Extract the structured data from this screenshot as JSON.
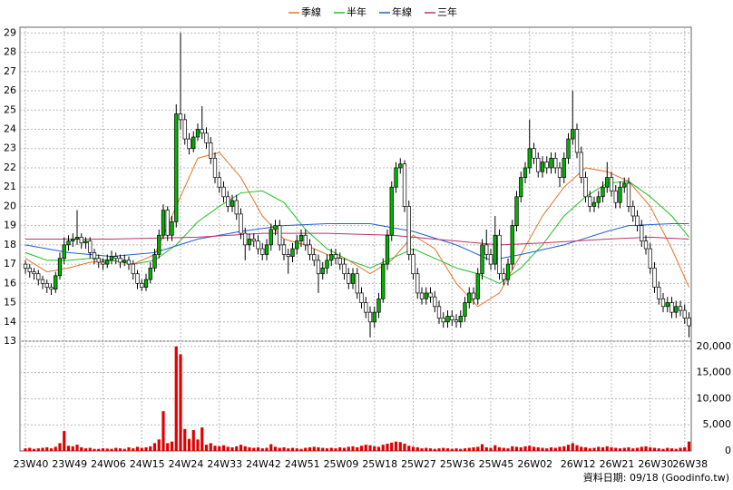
{
  "chart_data": {
    "type": "candlestick",
    "legend": [
      {
        "name": "季線",
        "color": "#e8742a"
      },
      {
        "name": "半年",
        "color": "#22c022"
      },
      {
        "name": "年線",
        "color": "#2060d0"
      },
      {
        "name": "三年",
        "color": "#c0306a"
      }
    ],
    "up_color": "#00b400",
    "down_color": "#ffffff",
    "volume_color": "#e00000",
    "ylim": [
      13,
      29.3
    ],
    "yticks": [
      13,
      14,
      15,
      16,
      17,
      18,
      19,
      20,
      21,
      22,
      23,
      24,
      25,
      26,
      27,
      28,
      29
    ],
    "y2lim": [
      0,
      21000
    ],
    "y2ticks": [
      0,
      {
        "value": 5000,
        "label": "5,000"
      },
      {
        "value": 10000,
        "label": "10,000"
      },
      {
        "value": 15000,
        "label": "15,000"
      },
      {
        "value": 20000,
        "label": "20,000"
      }
    ],
    "xlim": [
      0,
      154
    ],
    "xticks": [
      {
        "value": 0,
        "label": "23W40"
      },
      {
        "value": 9,
        "label": "23W49"
      },
      {
        "value": 18,
        "label": "24W06"
      },
      {
        "value": 27,
        "label": "24W15"
      },
      {
        "value": 36,
        "label": "24W24"
      },
      {
        "value": 45,
        "label": "24W33"
      },
      {
        "value": 54,
        "label": "24W42"
      },
      {
        "value": 63,
        "label": "24W51"
      },
      {
        "value": 72,
        "label": "25W09"
      },
      {
        "value": 81,
        "label": "25W18"
      },
      {
        "value": 90,
        "label": "25W27"
      },
      {
        "value": 99,
        "label": "25W36"
      },
      {
        "value": 108,
        "label": "25W45"
      },
      {
        "value": 117,
        "label": "26W02"
      },
      {
        "value": 127,
        "label": "26W12"
      },
      {
        "value": 136,
        "label": "26W21"
      },
      {
        "value": 145,
        "label": "26W30"
      },
      {
        "value": 153,
        "label": "26W38"
      }
    ],
    "grid": true,
    "footer": "資料日期: 09/18 (Goodinfo.tw)",
    "ohlc": [
      [
        17.0,
        17.2,
        16.5,
        16.8
      ],
      [
        16.8,
        17.0,
        16.3,
        16.6
      ],
      [
        16.6,
        16.8,
        16.2,
        16.5
      ],
      [
        16.5,
        16.7,
        15.9,
        16.2
      ],
      [
        16.2,
        16.4,
        15.7,
        16.0
      ],
      [
        16.0,
        16.2,
        15.5,
        15.8
      ],
      [
        15.8,
        16.0,
        15.4,
        15.7
      ],
      [
        15.7,
        16.6,
        15.5,
        16.4
      ],
      [
        16.4,
        17.6,
        16.2,
        17.3
      ],
      [
        17.3,
        18.4,
        17.0,
        18.0
      ],
      [
        18.0,
        18.5,
        17.7,
        18.2
      ],
      [
        18.2,
        18.6,
        17.9,
        18.3
      ],
      [
        18.3,
        19.8,
        18.0,
        18.4
      ],
      [
        18.4,
        18.6,
        17.8,
        18.1
      ],
      [
        18.1,
        18.4,
        17.8,
        18.2
      ],
      [
        18.2,
        18.4,
        17.3,
        17.6
      ],
      [
        17.6,
        17.8,
        17.0,
        17.3
      ],
      [
        17.3,
        17.5,
        16.8,
        17.1
      ],
      [
        17.1,
        17.3,
        16.7,
        17.0
      ],
      [
        17.0,
        17.5,
        16.8,
        17.2
      ],
      [
        17.2,
        17.7,
        17.0,
        17.4
      ],
      [
        17.4,
        17.6,
        17.0,
        17.3
      ],
      [
        17.3,
        17.5,
        16.8,
        17.1
      ],
      [
        17.1,
        17.5,
        16.9,
        17.2
      ],
      [
        17.2,
        17.4,
        16.7,
        17.0
      ],
      [
        17.0,
        17.2,
        16.2,
        16.5
      ],
      [
        16.5,
        16.7,
        15.7,
        16.0
      ],
      [
        16.0,
        16.2,
        15.6,
        15.8
      ],
      [
        15.8,
        16.5,
        15.6,
        16.2
      ],
      [
        16.2,
        17.1,
        16.0,
        16.8
      ],
      [
        16.8,
        17.8,
        16.6,
        17.5
      ],
      [
        17.5,
        18.8,
        17.3,
        18.5
      ],
      [
        18.5,
        20.1,
        18.3,
        19.8
      ],
      [
        19.8,
        20.0,
        18.2,
        18.5
      ],
      [
        18.5,
        19.5,
        18.2,
        19.2
      ],
      [
        19.2,
        25.3,
        18.9,
        24.8
      ],
      [
        24.8,
        29.0,
        24.0,
        24.5
      ],
      [
        24.5,
        24.8,
        23.2,
        23.5
      ],
      [
        23.5,
        23.8,
        22.7,
        23.0
      ],
      [
        23.0,
        23.9,
        22.8,
        23.6
      ],
      [
        23.6,
        24.3,
        23.4,
        24.0
      ],
      [
        24.0,
        25.2,
        23.5,
        23.8
      ],
      [
        23.8,
        24.1,
        23.0,
        23.3
      ],
      [
        23.3,
        23.6,
        22.2,
        22.5
      ],
      [
        22.5,
        22.8,
        21.2,
        21.5
      ],
      [
        21.5,
        21.8,
        20.7,
        21.0
      ],
      [
        21.0,
        21.3,
        20.2,
        20.5
      ],
      [
        20.5,
        20.8,
        19.7,
        20.0
      ],
      [
        20.0,
        20.6,
        19.7,
        20.3
      ],
      [
        20.3,
        20.6,
        19.3,
        19.6
      ],
      [
        19.6,
        19.9,
        18.3,
        18.6
      ],
      [
        18.6,
        18.9,
        17.2,
        18.0
      ],
      [
        18.0,
        18.6,
        17.7,
        18.3
      ],
      [
        18.3,
        18.6,
        17.9,
        18.2
      ],
      [
        18.2,
        18.5,
        17.5,
        17.8
      ],
      [
        17.8,
        18.1,
        17.2,
        17.5
      ],
      [
        17.5,
        18.3,
        17.2,
        18.0
      ],
      [
        18.0,
        19.1,
        17.7,
        18.8
      ],
      [
        18.8,
        19.3,
        18.5,
        19.0
      ],
      [
        19.0,
        19.3,
        17.7,
        18.0
      ],
      [
        18.0,
        18.3,
        17.2,
        17.5
      ],
      [
        17.5,
        17.8,
        16.5,
        17.4
      ],
      [
        17.4,
        18.1,
        17.1,
        17.8
      ],
      [
        17.8,
        18.5,
        17.5,
        18.2
      ],
      [
        18.2,
        18.8,
        17.9,
        18.5
      ],
      [
        18.5,
        18.8,
        17.7,
        18.0
      ],
      [
        18.0,
        18.3,
        17.2,
        17.5
      ],
      [
        17.5,
        17.8,
        16.9,
        17.2
      ],
      [
        17.2,
        17.5,
        15.5,
        16.5
      ],
      [
        16.5,
        17.1,
        16.2,
        16.8
      ],
      [
        16.8,
        17.5,
        16.5,
        17.2
      ],
      [
        17.2,
        17.8,
        16.9,
        17.5
      ],
      [
        17.5,
        17.8,
        17.0,
        17.3
      ],
      [
        17.3,
        17.6,
        16.7,
        17.0
      ],
      [
        17.0,
        17.3,
        16.2,
        16.5
      ],
      [
        16.5,
        16.8,
        15.7,
        16.0
      ],
      [
        16.0,
        16.8,
        15.7,
        16.5
      ],
      [
        16.5,
        16.8,
        15.2,
        15.5
      ],
      [
        15.5,
        15.8,
        14.7,
        15.0
      ],
      [
        15.0,
        15.3,
        14.2,
        14.5
      ],
      [
        14.5,
        14.8,
        13.2,
        14.0
      ],
      [
        14.0,
        14.8,
        13.7,
        14.5
      ],
      [
        14.5,
        15.5,
        14.2,
        15.2
      ],
      [
        15.2,
        17.3,
        15.0,
        17.0
      ],
      [
        17.0,
        18.8,
        16.7,
        18.5
      ],
      [
        18.5,
        21.3,
        18.2,
        21.0
      ],
      [
        21.0,
        22.3,
        20.7,
        22.0
      ],
      [
        22.0,
        22.5,
        21.7,
        22.2
      ],
      [
        22.2,
        22.4,
        19.7,
        20.0
      ],
      [
        20.0,
        20.3,
        17.2,
        17.5
      ],
      [
        17.5,
        17.8,
        16.2,
        16.5
      ],
      [
        16.5,
        16.8,
        15.2,
        15.5
      ],
      [
        15.5,
        15.8,
        14.9,
        15.2
      ],
      [
        15.2,
        15.8,
        14.9,
        15.5
      ],
      [
        15.5,
        15.8,
        15.0,
        15.3
      ],
      [
        15.3,
        15.6,
        14.5,
        14.8
      ],
      [
        14.8,
        15.1,
        13.9,
        14.2
      ],
      [
        14.2,
        14.5,
        13.7,
        14.0
      ],
      [
        14.0,
        14.6,
        13.7,
        14.3
      ],
      [
        14.3,
        14.6,
        13.8,
        14.1
      ],
      [
        14.1,
        14.4,
        13.7,
        14.0
      ],
      [
        14.0,
        14.6,
        13.7,
        14.3
      ],
      [
        14.3,
        15.3,
        14.0,
        15.0
      ],
      [
        15.0,
        15.8,
        14.7,
        15.5
      ],
      [
        15.5,
        15.8,
        14.9,
        15.2
      ],
      [
        15.2,
        16.8,
        14.9,
        16.5
      ],
      [
        16.5,
        18.3,
        16.2,
        18.0
      ],
      [
        18.0,
        18.8,
        17.2,
        17.5
      ],
      [
        17.5,
        17.8,
        16.7,
        17.0
      ],
      [
        17.0,
        19.5,
        16.7,
        18.5
      ],
      [
        18.5,
        18.8,
        16.2,
        16.5
      ],
      [
        16.5,
        16.8,
        15.9,
        16.2
      ],
      [
        16.2,
        17.3,
        15.9,
        17.0
      ],
      [
        17.0,
        19.3,
        16.7,
        19.0
      ],
      [
        19.0,
        20.8,
        18.7,
        20.5
      ],
      [
        20.5,
        21.8,
        20.2,
        21.5
      ],
      [
        21.5,
        22.3,
        21.2,
        22.0
      ],
      [
        22.0,
        24.5,
        21.7,
        23.0
      ],
      [
        23.0,
        23.3,
        22.2,
        22.5
      ],
      [
        22.5,
        22.8,
        21.5,
        21.8
      ],
      [
        21.8,
        22.6,
        21.5,
        22.3
      ],
      [
        22.3,
        22.6,
        21.7,
        22.0
      ],
      [
        22.0,
        22.8,
        21.7,
        22.5
      ],
      [
        22.5,
        22.8,
        21.7,
        22.0
      ],
      [
        22.0,
        22.3,
        21.0,
        21.5
      ],
      [
        21.5,
        22.8,
        21.2,
        22.5
      ],
      [
        22.5,
        23.8,
        22.2,
        23.5
      ],
      [
        23.5,
        26.0,
        23.2,
        24.0
      ],
      [
        24.0,
        24.3,
        22.5,
        22.8
      ],
      [
        22.8,
        23.1,
        21.2,
        21.5
      ],
      [
        21.5,
        21.8,
        20.2,
        20.5
      ],
      [
        20.5,
        20.8,
        19.7,
        20.0
      ],
      [
        20.0,
        20.5,
        19.7,
        20.2
      ],
      [
        20.2,
        20.8,
        19.9,
        20.5
      ],
      [
        20.5,
        21.3,
        20.2,
        21.0
      ],
      [
        21.0,
        22.3,
        20.7,
        21.5
      ],
      [
        21.5,
        21.8,
        20.5,
        20.8
      ],
      [
        20.8,
        21.1,
        19.9,
        20.2
      ],
      [
        20.2,
        21.3,
        19.9,
        21.0
      ],
      [
        21.0,
        21.5,
        20.7,
        21.2
      ],
      [
        21.2,
        21.5,
        19.7,
        20.0
      ],
      [
        20.0,
        20.3,
        19.2,
        19.5
      ],
      [
        19.5,
        19.8,
        18.7,
        19.0
      ],
      [
        19.0,
        19.3,
        17.9,
        18.2
      ],
      [
        18.2,
        18.5,
        17.5,
        17.8
      ],
      [
        17.8,
        18.1,
        16.5,
        16.8
      ],
      [
        16.8,
        17.1,
        15.5,
        15.8
      ],
      [
        15.8,
        16.1,
        14.9,
        15.2
      ],
      [
        15.2,
        15.5,
        14.5,
        14.8
      ],
      [
        14.8,
        15.3,
        14.5,
        15.0
      ],
      [
        15.0,
        15.3,
        14.2,
        14.5
      ],
      [
        14.5,
        15.1,
        14.2,
        14.8
      ],
      [
        14.8,
        15.1,
        14.3,
        14.6
      ],
      [
        14.6,
        14.9,
        13.9,
        14.2
      ],
      [
        14.2,
        14.5,
        13.2,
        13.8
      ]
    ],
    "volume": [
      500,
      600,
      400,
      500,
      600,
      700,
      500,
      800,
      1500,
      3800,
      1000,
      900,
      1200,
      700,
      500,
      600,
      400,
      400,
      500,
      450,
      400,
      600,
      500,
      400,
      700,
      500,
      800,
      600,
      700,
      900,
      1500,
      2200,
      7600,
      1500,
      1800,
      20000,
      18500,
      4200,
      2300,
      4000,
      2200,
      4500,
      1200,
      1500,
      1000,
      900,
      1100,
      800,
      700,
      900,
      1200,
      900,
      700,
      600,
      700,
      500,
      600,
      1300,
      800,
      600,
      700,
      500,
      600,
      500,
      400,
      600,
      700,
      800,
      700,
      600,
      500,
      600,
      500,
      700,
      600,
      800,
      900,
      700,
      1000,
      1200,
      1100,
      900,
      800,
      1200,
      1400,
      1600,
      1800,
      1700,
      1400,
      1000,
      800,
      700,
      500,
      600,
      500,
      400,
      500,
      600,
      500,
      400,
      500,
      400,
      500,
      600,
      700,
      800,
      1300,
      700,
      600,
      1100,
      700,
      600,
      500,
      900,
      800,
      700,
      900,
      1000,
      800,
      700,
      600,
      500,
      700,
      600,
      800,
      900,
      1200,
      1500,
      1100,
      800,
      700,
      500,
      600,
      800,
      700,
      900,
      700,
      600,
      500,
      600,
      700,
      500,
      600,
      800,
      900,
      700,
      600,
      500,
      400,
      600,
      500,
      400,
      600,
      700,
      1800
    ],
    "series": [
      {
        "name": "季線",
        "color": "#e8742a",
        "x": [
          0,
          5,
          10,
          15,
          20,
          25,
          30,
          35,
          40,
          45,
          50,
          55,
          60,
          65,
          70,
          75,
          80,
          85,
          90,
          95,
          100,
          105,
          110,
          115,
          120,
          125,
          130,
          135,
          140,
          145,
          150,
          154
        ],
        "values": [
          17.3,
          16.6,
          16.8,
          17.1,
          17.2,
          17.0,
          17.5,
          20.0,
          22.5,
          22.8,
          21.5,
          19.5,
          18.3,
          18.0,
          17.5,
          17.2,
          16.5,
          17.2,
          18.5,
          17.8,
          16.0,
          14.8,
          15.5,
          17.5,
          19.5,
          21.0,
          22.0,
          21.8,
          21.3,
          20.0,
          17.8,
          15.8
        ]
      },
      {
        "name": "半年",
        "color": "#22c022",
        "x": [
          0,
          5,
          10,
          15,
          20,
          25,
          30,
          35,
          40,
          45,
          50,
          55,
          60,
          65,
          70,
          75,
          80,
          85,
          90,
          95,
          100,
          105,
          110,
          115,
          120,
          125,
          130,
          135,
          140,
          145,
          150,
          154
        ],
        "values": [
          17.6,
          17.2,
          17.2,
          17.3,
          17.2,
          17.0,
          17.2,
          18.0,
          19.2,
          20.0,
          20.7,
          20.8,
          20.2,
          18.8,
          17.8,
          17.2,
          16.8,
          17.3,
          17.8,
          17.3,
          16.8,
          16.5,
          16.0,
          16.8,
          18.0,
          19.5,
          20.5,
          21.2,
          21.3,
          20.5,
          19.5,
          18.4
        ]
      },
      {
        "name": "年線",
        "color": "#2060d0",
        "x": [
          0,
          10,
          20,
          30,
          40,
          50,
          60,
          70,
          80,
          90,
          100,
          108,
          115,
          125,
          135,
          140,
          150,
          154
        ],
        "values": [
          18.0,
          17.6,
          17.4,
          17.6,
          18.3,
          18.7,
          19.0,
          19.1,
          19.1,
          18.7,
          18.0,
          17.2,
          17.5,
          18.0,
          18.7,
          19.0,
          19.1,
          19.1
        ]
      },
      {
        "name": "三年",
        "color": "#c0306a",
        "x": [
          0,
          20,
          40,
          55,
          70,
          85,
          100,
          110,
          120,
          135,
          145,
          154
        ],
        "values": [
          18.3,
          18.3,
          18.4,
          18.6,
          18.6,
          18.5,
          18.2,
          18.0,
          18.1,
          18.3,
          18.4,
          18.3
        ]
      }
    ]
  }
}
